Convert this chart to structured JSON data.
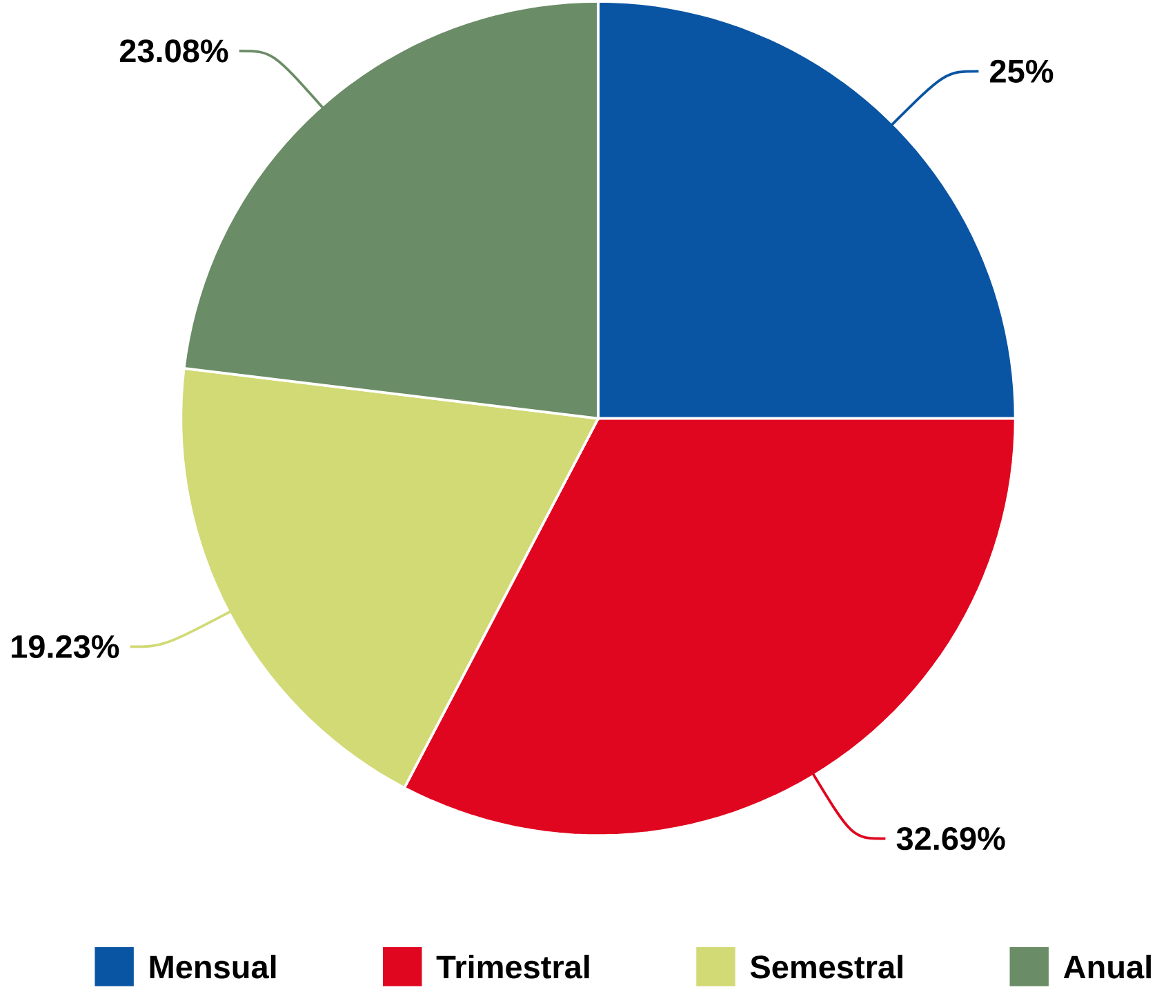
{
  "chart_data": {
    "type": "pie",
    "categories": [
      "Mensual",
      "Trimestral",
      "Semestral",
      "Anual"
    ],
    "values": [
      25,
      32.69,
      19.23,
      23.08
    ],
    "colors": [
      "#0a55a3",
      "#e0061f",
      "#d1da75",
      "#6a8c66"
    ],
    "value_labels": [
      "25%",
      "32.69%",
      "19.23%",
      "23.08%"
    ],
    "legend": "bottom"
  }
}
